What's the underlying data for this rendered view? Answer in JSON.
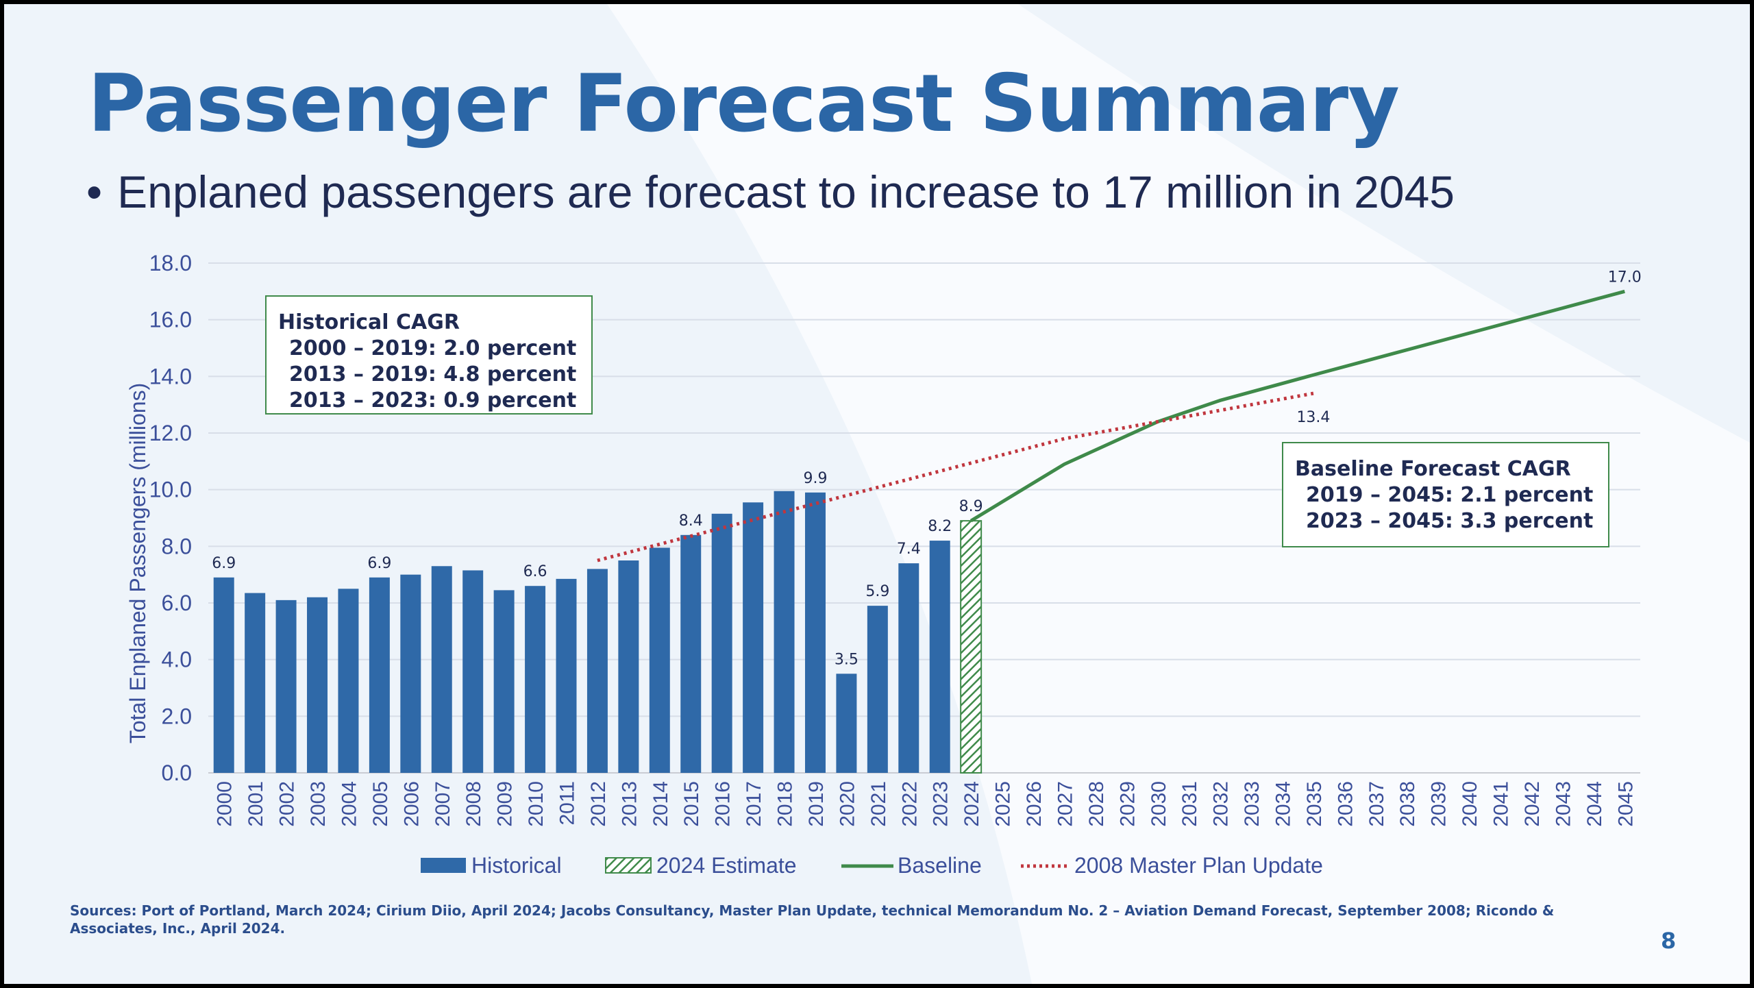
{
  "slide": {
    "title": "Passenger Forecast Summary",
    "bullet_marker": "•",
    "bullet": "Enplaned passengers are forecast to increase to 17 million in 2045",
    "source": "Sources: Port of Portland, March 2024; Cirium Diio, April 2024; Jacobs Consultancy, Master Plan Update, technical Memorandum No. 2 – Aviation Demand Forecast, September 2008; Ricondo & Associates, Inc., April 2024.",
    "page_number": "8"
  },
  "colors": {
    "historical": "#2f69a8",
    "estimate": "#3f8a4a",
    "baseline": "#3f8a4a",
    "master_plan": "#c0363e",
    "axis_text": "#3b4f9a",
    "title": "#2b66a6"
  },
  "chart_data": {
    "type": "bar",
    "ylabel": "Total Enplaned Passengers (millions)",
    "ylim": [
      0,
      18
    ],
    "yticks": [
      "0.0",
      "2.0",
      "4.0",
      "6.0",
      "8.0",
      "10.0",
      "12.0",
      "14.0",
      "16.0",
      "18.0"
    ],
    "grid": true,
    "legend_position": "bottom",
    "categories": [
      "2000",
      "2001",
      "2002",
      "2003",
      "2004",
      "2005",
      "2006",
      "2007",
      "2008",
      "2009",
      "2010",
      "2011",
      "2012",
      "2013",
      "2014",
      "2015",
      "2016",
      "2017",
      "2018",
      "2019",
      "2020",
      "2021",
      "2022",
      "2023",
      "2024",
      "2025",
      "2026",
      "2027",
      "2028",
      "2029",
      "2030",
      "2031",
      "2032",
      "2033",
      "2034",
      "2035",
      "2036",
      "2037",
      "2038",
      "2039",
      "2040",
      "2041",
      "2042",
      "2043",
      "2044",
      "2045"
    ],
    "series": [
      {
        "name": "Historical",
        "type": "bar",
        "x": [
          "2000",
          "2001",
          "2002",
          "2003",
          "2004",
          "2005",
          "2006",
          "2007",
          "2008",
          "2009",
          "2010",
          "2011",
          "2012",
          "2013",
          "2014",
          "2015",
          "2016",
          "2017",
          "2018",
          "2019",
          "2020",
          "2021",
          "2022",
          "2023"
        ],
        "values": [
          6.9,
          6.35,
          6.1,
          6.2,
          6.5,
          6.9,
          7.0,
          7.3,
          7.15,
          6.45,
          6.6,
          6.85,
          7.2,
          7.5,
          7.95,
          8.4,
          9.15,
          9.55,
          9.95,
          9.9,
          3.5,
          5.9,
          7.4,
          8.2
        ]
      },
      {
        "name": "2024 Estimate",
        "type": "bar-hatched",
        "x": [
          "2024"
        ],
        "values": [
          8.9
        ]
      },
      {
        "name": "Baseline",
        "type": "line",
        "x": [
          "2024",
          "2027",
          "2030",
          "2032",
          "2035",
          "2045"
        ],
        "values": [
          8.9,
          10.9,
          12.4,
          13.15,
          14.05,
          17.0
        ]
      },
      {
        "name": "2008 Master Plan Update",
        "type": "dotted-line",
        "x": [
          "2012",
          "2027",
          "2035"
        ],
        "values": [
          7.5,
          11.8,
          13.4
        ]
      }
    ],
    "data_labels": [
      {
        "x": "2000",
        "value": 6.9,
        "text": "6.9"
      },
      {
        "x": "2005",
        "value": 6.9,
        "text": "6.9"
      },
      {
        "x": "2010",
        "value": 6.6,
        "text": "6.6"
      },
      {
        "x": "2015",
        "value": 8.4,
        "text": "8.4"
      },
      {
        "x": "2019",
        "value": 9.9,
        "text": "9.9"
      },
      {
        "x": "2020",
        "value": 3.5,
        "text": "3.5"
      },
      {
        "x": "2021",
        "value": 5.9,
        "text": "5.9"
      },
      {
        "x": "2022",
        "value": 7.4,
        "text": "7.4"
      },
      {
        "x": "2023",
        "value": 8.2,
        "text": "8.2"
      },
      {
        "x": "2024",
        "value": 8.9,
        "text": "8.9"
      },
      {
        "x": "2035",
        "value": 13.4,
        "text": "13.4",
        "placement": "below"
      },
      {
        "x": "2045",
        "value": 17.0,
        "text": "17.0"
      }
    ],
    "annotations": [
      {
        "id": "historical-cagr",
        "lines": [
          "Historical CAGR",
          "2000 – 2019: 2.0 percent",
          "2013 – 2019: 4.8 percent",
          "2013 – 2023: 0.9 percent"
        ]
      },
      {
        "id": "baseline-cagr",
        "lines": [
          "Baseline Forecast CAGR",
          "2019 – 2045: 2.1 percent",
          "2023 – 2045: 3.3 percent"
        ]
      }
    ]
  }
}
